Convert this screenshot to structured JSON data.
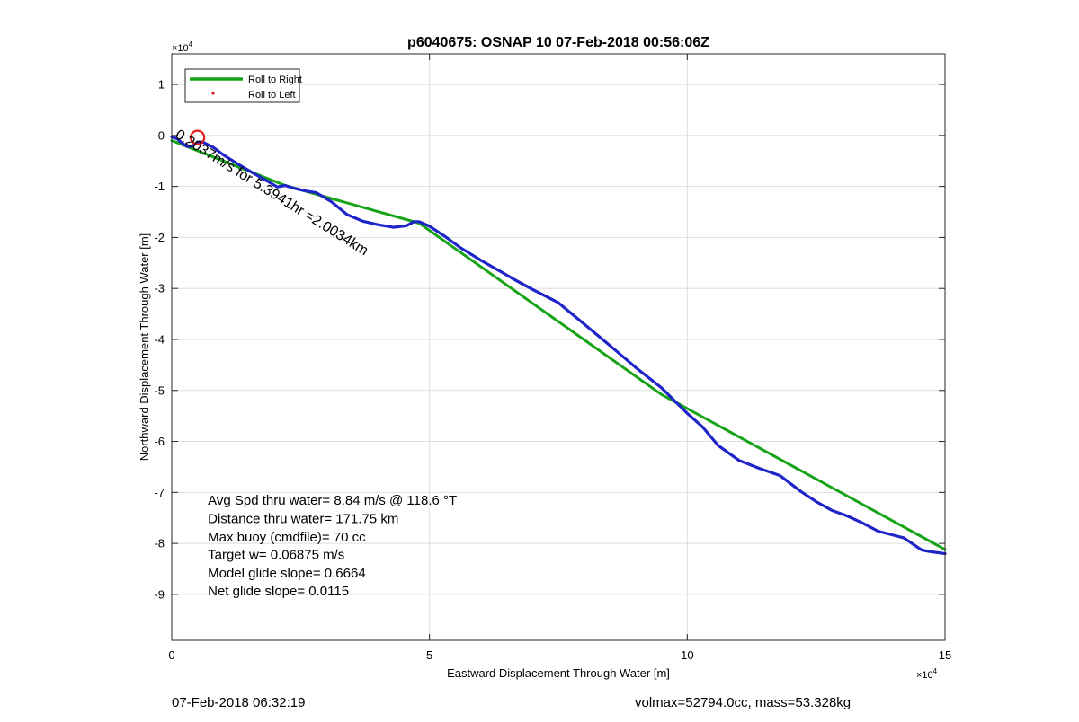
{
  "chart_data": {
    "type": "line",
    "title": "p6040675: OSNAP 10 07-Feb-2018 00:56:06Z",
    "xlabel": "Eastward Displacement Through Water [m]",
    "ylabel": "Northward Displacement Through Water [m]",
    "x_exponent_label": "×10",
    "y_exponent_label": "×10",
    "exponent_power": "4",
    "xlim": [
      0,
      150000
    ],
    "ylim": [
      -99000,
      16000
    ],
    "x_ticks": [
      0,
      50000,
      100000,
      150000
    ],
    "x_tick_labels": [
      "0",
      "5",
      "10",
      "15"
    ],
    "y_ticks": [
      10000,
      0,
      -10000,
      -20000,
      -30000,
      -40000,
      -50000,
      -60000,
      -70000,
      -80000,
      -90000
    ],
    "y_tick_labels": [
      "1",
      "0",
      "-1",
      "-2",
      "-3",
      "-4",
      "-5",
      "-6",
      "-7",
      "-8",
      "-9"
    ],
    "grid": true,
    "legend_position": "top-left",
    "legend": [
      {
        "label": "Roll to Right",
        "marker": "line",
        "color": "#17a317"
      },
      {
        "label": "Roll to Left",
        "marker": "dot",
        "color": "#e01b1b"
      }
    ],
    "series": [
      {
        "name": "Roll to Right",
        "color": "#17a317",
        "points": [
          [
            0,
            -1000
          ],
          [
            22000,
            -9800
          ],
          [
            48000,
            -17200
          ],
          [
            95000,
            -50800
          ],
          [
            150000,
            -81200
          ]
        ]
      },
      {
        "color": "#1f24c8",
        "points": [
          [
            0,
            -300
          ],
          [
            1000,
            -600
          ],
          [
            2000,
            -1500
          ],
          [
            3000,
            -2200
          ],
          [
            4000,
            -2100
          ],
          [
            5000,
            -1300
          ],
          [
            6000,
            -1300
          ],
          [
            8000,
            -2300
          ],
          [
            10000,
            -3800
          ],
          [
            13000,
            -5700
          ],
          [
            16000,
            -7500
          ],
          [
            19000,
            -9200
          ],
          [
            20500,
            -10100
          ],
          [
            22000,
            -9800
          ],
          [
            23500,
            -10300
          ],
          [
            26000,
            -10900
          ],
          [
            28000,
            -11200
          ],
          [
            31000,
            -13000
          ],
          [
            34000,
            -15500
          ],
          [
            37000,
            -16800
          ],
          [
            40000,
            -17500
          ],
          [
            43000,
            -18000
          ],
          [
            45500,
            -17700
          ],
          [
            47000,
            -16900
          ],
          [
            48000,
            -16900
          ],
          [
            50000,
            -17800
          ],
          [
            53000,
            -19800
          ],
          [
            56000,
            -22000
          ],
          [
            60000,
            -24500
          ],
          [
            64000,
            -26800
          ],
          [
            66000,
            -28000
          ],
          [
            70000,
            -30200
          ],
          [
            75000,
            -32800
          ],
          [
            80000,
            -37000
          ],
          [
            85000,
            -41200
          ],
          [
            90000,
            -45500
          ],
          [
            95000,
            -49500
          ],
          [
            98000,
            -52500
          ],
          [
            100000,
            -54500
          ],
          [
            103000,
            -57200
          ],
          [
            106000,
            -60800
          ],
          [
            110000,
            -63700
          ],
          [
            114000,
            -65300
          ],
          [
            118000,
            -66700
          ],
          [
            122000,
            -69800
          ],
          [
            125000,
            -71800
          ],
          [
            128000,
            -73500
          ],
          [
            131000,
            -74600
          ],
          [
            134000,
            -76000
          ],
          [
            137000,
            -77600
          ],
          [
            140000,
            -78400
          ],
          [
            142000,
            -78900
          ],
          [
            144000,
            -80300
          ],
          [
            145500,
            -81300
          ],
          [
            147000,
            -81600
          ],
          [
            150000,
            -82000
          ]
        ]
      }
    ],
    "markers": [
      {
        "type": "red-circle",
        "x": 5000,
        "y": -400
      }
    ],
    "annotations": [
      {
        "text": "0.2037m/s for 5.3941hr =2.0034km",
        "x": 500,
        "y": -300,
        "angle": 32
      },
      {
        "text": "Avg Spd thru water=  8.84 m/s @ 118.6 °T",
        "x": 7000,
        "y": -72400
      },
      {
        "text": "Distance thru water= 171.75 km",
        "x": 7000,
        "y": -76000
      },
      {
        "text": "Max buoy (cmdfile)= 70 cc",
        "x": 7000,
        "y": -79600
      },
      {
        "text": "Target w= 0.06875 m/s",
        "x": 7000,
        "y": -83100
      },
      {
        "text": "Model glide slope= 0.6664",
        "x": 7000,
        "y": -86700
      },
      {
        "text": "Net glide slope= 0.0115",
        "x": 7000,
        "y": -90200
      }
    ]
  },
  "footer": {
    "timestamp": "07-Feb-2018 06:32:19",
    "volume_mass": "volmax=52794.0cc, mass=53.328kg"
  }
}
